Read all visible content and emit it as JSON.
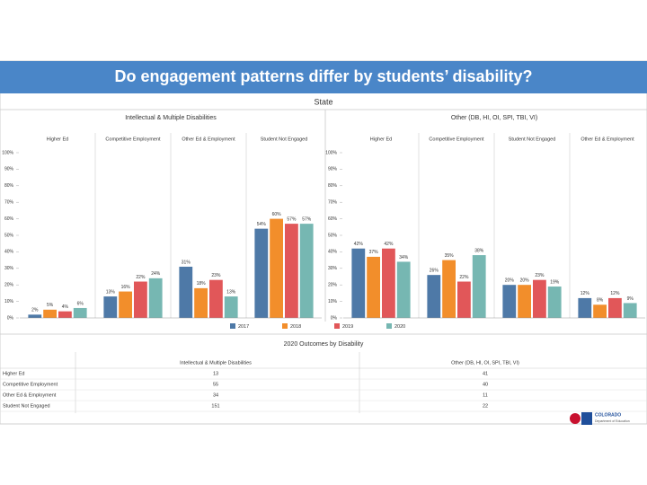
{
  "header": {
    "title": "Do engagement patterns differ by students’ disability?",
    "subtitle": "State"
  },
  "chart_data": [
    {
      "type": "bar",
      "title": "Intellectual & Multiple Disabilities",
      "categories": [
        "Higher Ed",
        "Competitive Employment",
        "Other Ed & Employment",
        "Student Not Engaged"
      ],
      "series": [
        {
          "name": "2017",
          "color": "#4e79a7",
          "values": [
            2,
            13,
            31,
            54
          ],
          "value_labels": [
            "2%",
            "13%",
            "31%",
            "54%"
          ]
        },
        {
          "name": "2018",
          "color": "#f28e2b",
          "values": [
            5,
            16,
            18,
            60
          ],
          "value_labels": [
            "5%",
            "16%",
            "18%",
            "60%"
          ]
        },
        {
          "name": "2019",
          "color": "#e15759",
          "values": [
            4,
            22,
            23,
            57
          ],
          "value_labels": [
            "4%",
            "22%",
            "23%",
            "57%"
          ]
        },
        {
          "name": "2020",
          "color": "#76b7b2",
          "values": [
            6,
            24,
            13,
            57
          ],
          "value_labels": [
            "6%",
            "24%",
            "13%",
            "57%"
          ]
        }
      ],
      "ylim": [
        0,
        100
      ],
      "yticks": [
        {
          "value": 0,
          "label": "0%"
        },
        {
          "value": 10,
          "label": "10%"
        },
        {
          "value": 20,
          "label": "20%"
        },
        {
          "value": 30,
          "label": "30%"
        },
        {
          "value": 40,
          "label": "40%"
        },
        {
          "value": 50,
          "label": "50%"
        },
        {
          "value": 60,
          "label": "60%"
        },
        {
          "value": 70,
          "label": "70%"
        },
        {
          "value": 80,
          "label": "80%"
        },
        {
          "value": 90,
          "label": "90%"
        },
        {
          "value": 100,
          "label": "100%"
        }
      ]
    },
    {
      "type": "bar",
      "title": "Other (DB, HI, OI, SPI, TBI, VI)",
      "categories": [
        "Higher Ed",
        "Competitive Employment",
        "Student Not Engaged",
        "Other Ed & Employment"
      ],
      "series": [
        {
          "name": "2017",
          "color": "#4e79a7",
          "values": [
            42,
            26,
            20,
            12
          ],
          "value_labels": [
            "42%",
            "26%",
            "20%",
            "12%"
          ]
        },
        {
          "name": "2018",
          "color": "#f28e2b",
          "values": [
            37,
            35,
            20,
            8
          ],
          "value_labels": [
            "37%",
            "35%",
            "20%",
            "8%"
          ]
        },
        {
          "name": "2019",
          "color": "#e15759",
          "values": [
            42,
            22,
            23,
            12
          ],
          "value_labels": [
            "42%",
            "22%",
            "23%",
            "12%"
          ]
        },
        {
          "name": "2020",
          "color": "#76b7b2",
          "values": [
            34,
            38,
            19,
            9
          ],
          "value_labels": [
            "34%",
            "38%",
            "19%",
            "9%"
          ]
        }
      ],
      "ylim": [
        0,
        100
      ],
      "yticks": [
        {
          "value": 0,
          "label": "0%"
        },
        {
          "value": 10,
          "label": "10%"
        },
        {
          "value": 20,
          "label": "20%"
        },
        {
          "value": 30,
          "label": "30%"
        },
        {
          "value": 40,
          "label": "40%"
        },
        {
          "value": 50,
          "label": "50%"
        },
        {
          "value": 60,
          "label": "60%"
        },
        {
          "value": 70,
          "label": "70%"
        },
        {
          "value": 80,
          "label": "80%"
        },
        {
          "value": 90,
          "label": "90%"
        },
        {
          "value": 100,
          "label": "100%"
        }
      ]
    }
  ],
  "table": {
    "title": "2020 Outcomes by Disability",
    "columns": [
      "Intellectual & Multiple Disabilities",
      "Other (DB, HI, OI, SPI, TBI, VI)"
    ],
    "rows": [
      [
        "Higher Ed",
        13,
        41
      ],
      [
        "Competitive Employment",
        55,
        40
      ],
      [
        "Other Ed & Employment",
        34,
        11
      ],
      [
        "Student Not Engaged",
        151,
        22
      ]
    ]
  },
  "logo": {
    "name": "COLORADO",
    "sub": "Department of Education"
  }
}
